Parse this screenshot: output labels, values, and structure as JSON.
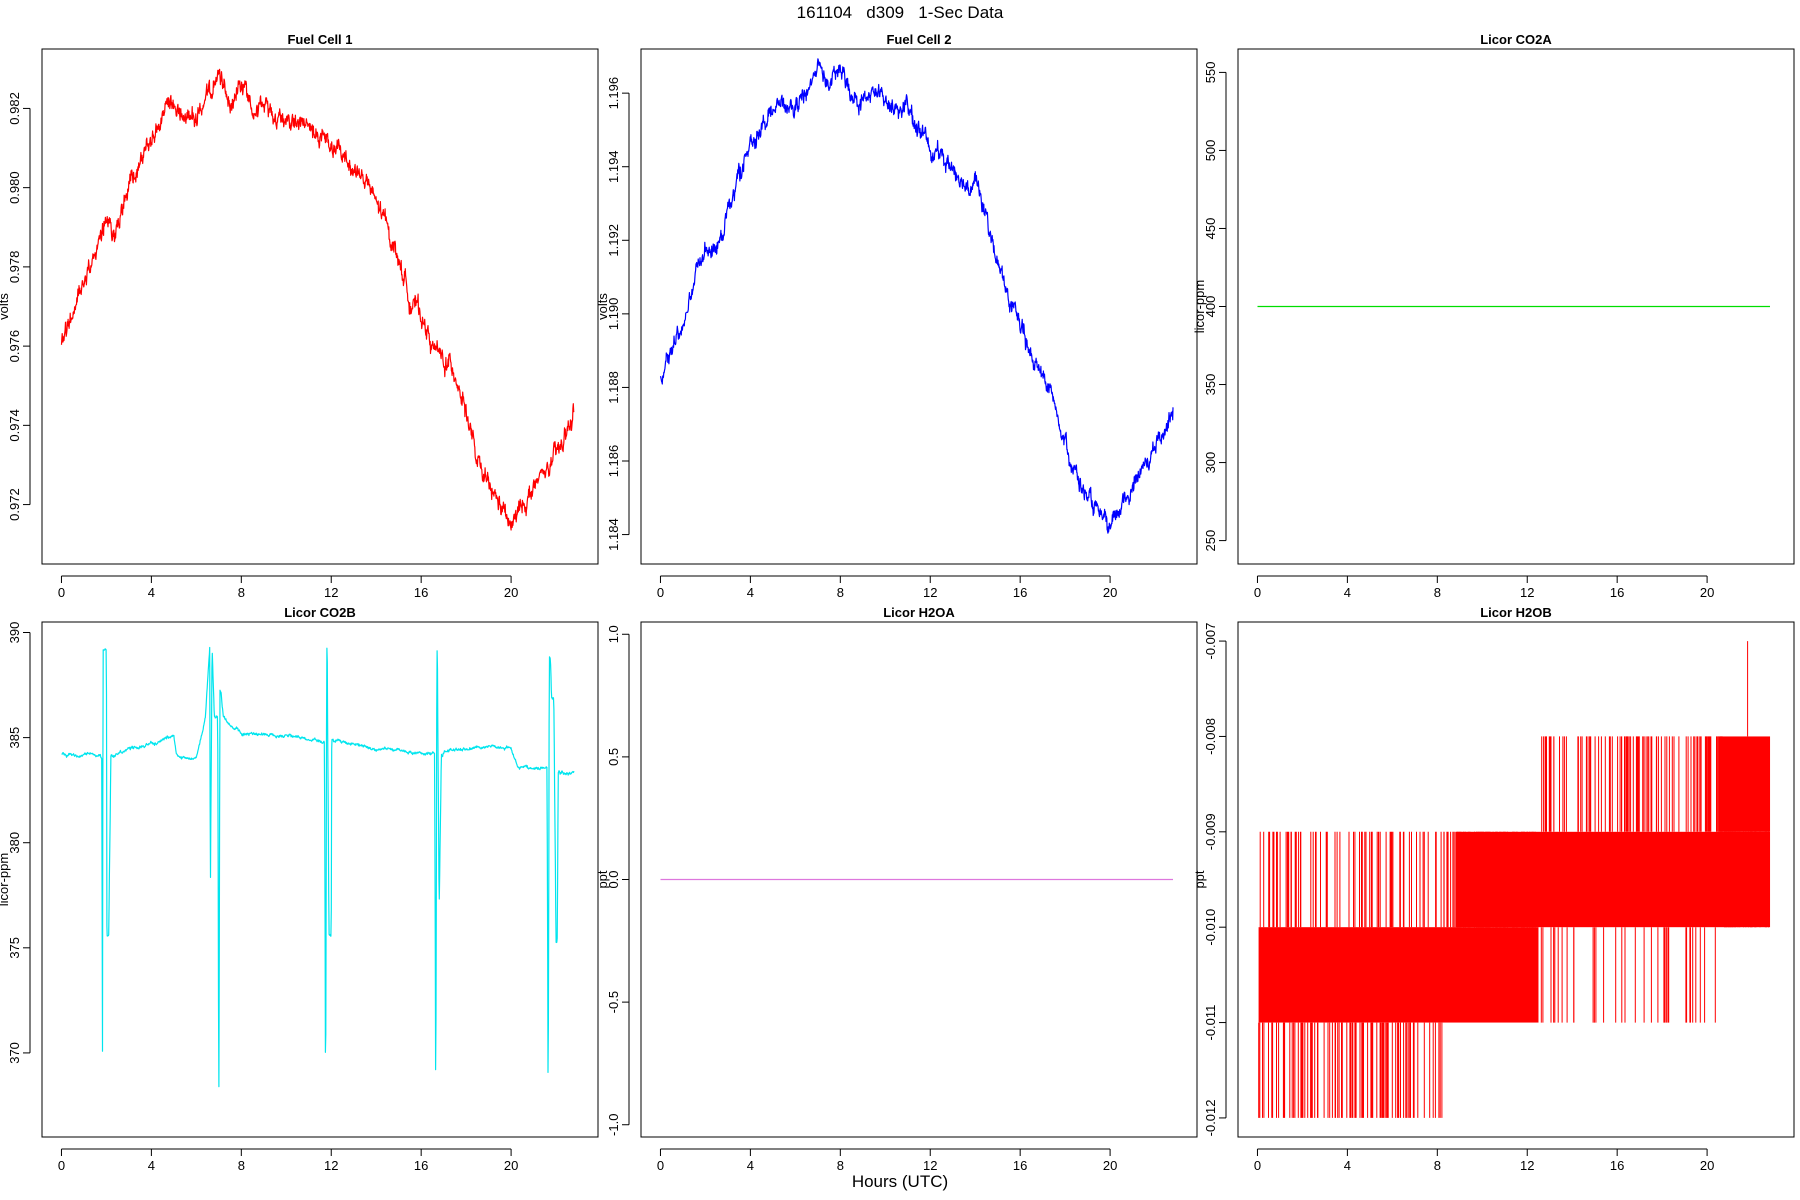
{
  "page": {
    "title": "161104   d309   1-Sec Data",
    "x_axis_label": "Hours (UTC)"
  },
  "chart_data": [
    {
      "type": "line",
      "title": "Fuel Cell 1",
      "ylabel": "volts",
      "xlim": [
        0,
        23
      ],
      "ylim": [
        0.9705,
        0.9835
      ],
      "x_ticks": [
        0,
        4,
        8,
        12,
        16,
        20
      ],
      "y_ticks": [
        0.972,
        0.974,
        0.976,
        0.978,
        0.98,
        0.982
      ],
      "y_tick_labels": [
        "0.972",
        "0.974",
        "0.976",
        "0.978",
        "0.980",
        "0.982"
      ],
      "color": "#ff0000",
      "noise": 0.00025,
      "x": [
        0,
        0.5,
        1,
        1.5,
        2,
        2.5,
        3,
        3.5,
        4,
        4.5,
        5,
        5.5,
        6,
        6.5,
        7,
        7.5,
        8,
        8.5,
        9,
        9.5,
        10,
        10.5,
        11,
        11.5,
        12,
        12.5,
        13,
        13.5,
        14,
        14.5,
        15,
        15.5,
        16,
        16.5,
        17,
        17.5,
        18,
        18.5,
        19,
        19.5,
        20,
        20.5,
        21,
        21.5,
        22,
        22.5,
        22.8
      ],
      "values": [
        0.976,
        0.9768,
        0.9778,
        0.9784,
        0.979,
        0.979,
        0.98,
        0.9806,
        0.9812,
        0.9818,
        0.9819,
        0.9818,
        0.9818,
        0.9822,
        0.9828,
        0.9822,
        0.9826,
        0.9822,
        0.982,
        0.9818,
        0.9818,
        0.9816,
        0.9815,
        0.9812,
        0.981,
        0.9808,
        0.9805,
        0.9802,
        0.9796,
        0.979,
        0.9782,
        0.9772,
        0.9768,
        0.976,
        0.9756,
        0.9754,
        0.9744,
        0.973,
        0.9724,
        0.972,
        0.9714,
        0.972,
        0.9724,
        0.9728,
        0.9732,
        0.9738,
        0.9744
      ]
    },
    {
      "type": "line",
      "title": "Fuel Cell 2",
      "ylabel": "volts",
      "xlim": [
        0,
        23
      ],
      "ylim": [
        1.1832,
        1.1972
      ],
      "x_ticks": [
        0,
        4,
        8,
        12,
        16,
        20
      ],
      "y_ticks": [
        1.184,
        1.186,
        1.188,
        1.19,
        1.192,
        1.194,
        1.196
      ],
      "y_tick_labels": [
        "1.184",
        "1.186",
        "1.188",
        "1.190",
        "1.192",
        "1.194",
        "1.196"
      ],
      "color": "#0000ff",
      "noise": 0.00025,
      "x": [
        0,
        0.5,
        1,
        1.5,
        2,
        2.5,
        3,
        3.5,
        4,
        4.5,
        5,
        5.5,
        6,
        6.5,
        7,
        7.5,
        8,
        8.5,
        9,
        9.5,
        10,
        10.5,
        11,
        11.5,
        12,
        12.5,
        13,
        13.5,
        14,
        14.5,
        15,
        15.5,
        16,
        16.5,
        17,
        17.5,
        18,
        18.5,
        19,
        19.5,
        20,
        20.5,
        21,
        21.5,
        22,
        22.5,
        22.8
      ],
      "values": [
        1.1882,
        1.189,
        1.1898,
        1.1908,
        1.1918,
        1.1918,
        1.1928,
        1.1938,
        1.1946,
        1.1952,
        1.1956,
        1.1956,
        1.1956,
        1.196,
        1.1968,
        1.1962,
        1.1966,
        1.196,
        1.1958,
        1.196,
        1.1958,
        1.1956,
        1.1956,
        1.195,
        1.1946,
        1.1942,
        1.194,
        1.1936,
        1.1936,
        1.1926,
        1.1914,
        1.1904,
        1.1896,
        1.1888,
        1.1884,
        1.1876,
        1.1866,
        1.1856,
        1.185,
        1.1845,
        1.184,
        1.1848,
        1.1854,
        1.1858,
        1.1864,
        1.187,
        1.1875
      ]
    },
    {
      "type": "line",
      "title": "Licor CO2A",
      "ylabel": "licor-ppm",
      "xlim": [
        0,
        23
      ],
      "ylim": [
        235,
        565
      ],
      "x_ticks": [
        0,
        4,
        8,
        12,
        16,
        20
      ],
      "y_ticks": [
        250,
        300,
        350,
        400,
        450,
        500,
        550
      ],
      "y_tick_labels": [
        "250",
        "300",
        "350",
        "400",
        "450",
        "500",
        "550"
      ],
      "color": "#00dd00",
      "noise": 0,
      "x": [
        0,
        22.8
      ],
      "values": [
        400,
        400
      ]
    },
    {
      "type": "line",
      "title": "Licor CO2B",
      "ylabel": "licor-ppm",
      "xlim": [
        0,
        23
      ],
      "ylim": [
        366,
        390.5
      ],
      "x_ticks": [
        0,
        4,
        8,
        12,
        16,
        20
      ],
      "y_ticks": [
        370,
        375,
        380,
        385,
        390
      ],
      "y_tick_labels": [
        "370",
        "375",
        "380",
        "385",
        "390"
      ],
      "color": "#00e5ee",
      "noise": 0.08,
      "x": [
        0,
        1.7,
        1.8,
        1.82,
        1.85,
        2.0,
        2.02,
        2.1,
        2.2,
        2.3,
        3,
        4,
        5,
        5.1,
        5.3,
        6.0,
        6.4,
        6.6,
        6.62,
        6.7,
        6.8,
        6.95,
        7.0,
        7.05,
        7.1,
        7.2,
        7.5,
        8,
        10,
        11.7,
        11.75,
        11.8,
        11.82,
        11.9,
        12.0,
        12.02,
        12.1,
        12.2,
        12.3,
        14,
        16.6,
        16.65,
        16.7,
        16.72,
        16.8,
        16.9,
        16.95,
        17.0,
        17.1,
        17.3,
        19,
        20,
        20.3,
        21,
        21.6,
        21.65,
        21.7,
        21.75,
        21.8,
        21.9,
        22.0,
        22.05,
        22.1,
        22.2,
        22.25,
        22.3,
        22.4,
        22.8
      ],
      "values": [
        384.2,
        384.2,
        384.0,
        367.2,
        389.2,
        389.2,
        375.6,
        375.5,
        384.2,
        384.1,
        384.5,
        384.7,
        385.1,
        384.2,
        384.0,
        384.0,
        386.0,
        389.4,
        377.2,
        389.3,
        386.0,
        386.0,
        367.3,
        387.3,
        387.2,
        386.0,
        385.6,
        385.2,
        385.1,
        384.8,
        367.2,
        389.3,
        389.2,
        375.6,
        375.5,
        385.0,
        384.8,
        384.8,
        384.8,
        384.5,
        384.2,
        367.1,
        389.1,
        389.0,
        376.8,
        384.2,
        384.1,
        384.3,
        384.4,
        384.4,
        384.6,
        384.5,
        383.6,
        383.5,
        383.6,
        367.0,
        388.9,
        388.8,
        386.9,
        386.9,
        375.3,
        375.3,
        383.4,
        383.3,
        383.4,
        383.4,
        383.3,
        383.3
      ]
    },
    {
      "type": "line",
      "title": "Licor H2OA",
      "ylabel": "ppt",
      "xlim": [
        0,
        23
      ],
      "ylim": [
        -1.05,
        1.05
      ],
      "x_ticks": [
        0,
        4,
        8,
        12,
        16,
        20
      ],
      "y_ticks": [
        -1.0,
        -0.5,
        0.0,
        0.5,
        1.0
      ],
      "y_tick_labels": [
        "-1.0",
        "-0.5",
        "0.0",
        "0.5",
        "1.0"
      ],
      "color": "#dd77dd",
      "noise": 0,
      "x": [
        0,
        22.8
      ],
      "values": [
        0,
        0
      ]
    },
    {
      "type": "line",
      "title": "Licor H2OB",
      "ylabel": "ppt",
      "xlim": [
        0,
        23
      ],
      "ylim": [
        -0.0122,
        -0.0068
      ],
      "x_ticks": [
        0,
        4,
        8,
        12,
        16,
        20
      ],
      "y_ticks": [
        -0.012,
        -0.011,
        -0.01,
        -0.009,
        -0.008,
        -0.007
      ],
      "y_tick_labels": [
        "-0.012",
        "-0.011",
        "-0.010",
        "-0.009",
        "-0.008",
        "-0.007"
      ],
      "color": "#ff0000",
      "noise": 0,
      "bands": [
        {
          "from": 0.05,
          "to": 12.5,
          "low": -0.011,
          "high": -0.01
        },
        {
          "from": 8.8,
          "to": 22.8,
          "low": -0.01,
          "high": -0.009
        },
        {
          "from": 20.5,
          "to": 22.8,
          "low": -0.009,
          "high": -0.008
        }
      ],
      "x": [
        0.05,
        21.8
      ],
      "values": [
        -0.0105,
        -0.007
      ]
    }
  ]
}
